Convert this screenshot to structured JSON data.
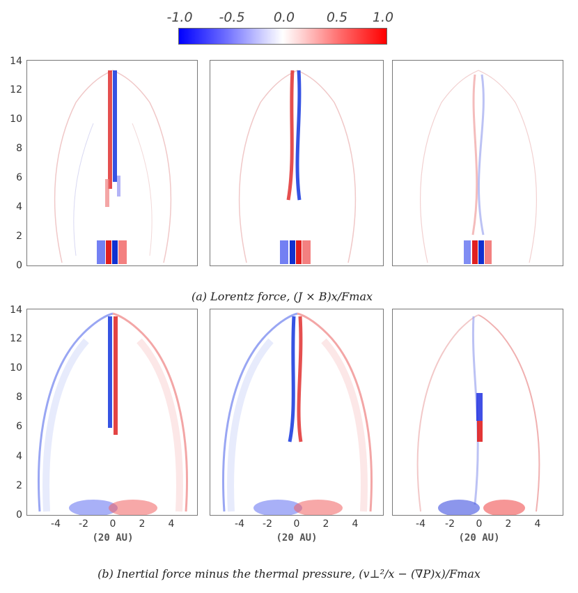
{
  "colorbar": {
    "ticks": [
      "-1.0",
      "-0.5",
      "0.0",
      "0.5",
      "1.0"
    ],
    "colors": {
      "negative": "#0000ff",
      "zero": "#ffffff",
      "positive": "#ff0000"
    }
  },
  "figure": {
    "y_ticks": [
      "0",
      "2",
      "4",
      "6",
      "8",
      "10",
      "12",
      "14"
    ],
    "x_ticks": [
      "-4",
      "-2",
      "0",
      "2",
      "4"
    ],
    "x_unit_label": "(20 AU)",
    "caption_a": "(a) Lorentz force, (J × B)x/Fmax",
    "caption_b": "(b) Inertial force minus the thermal pressure, (v⊥²/x − (∇P)x)/Fmax"
  }
}
